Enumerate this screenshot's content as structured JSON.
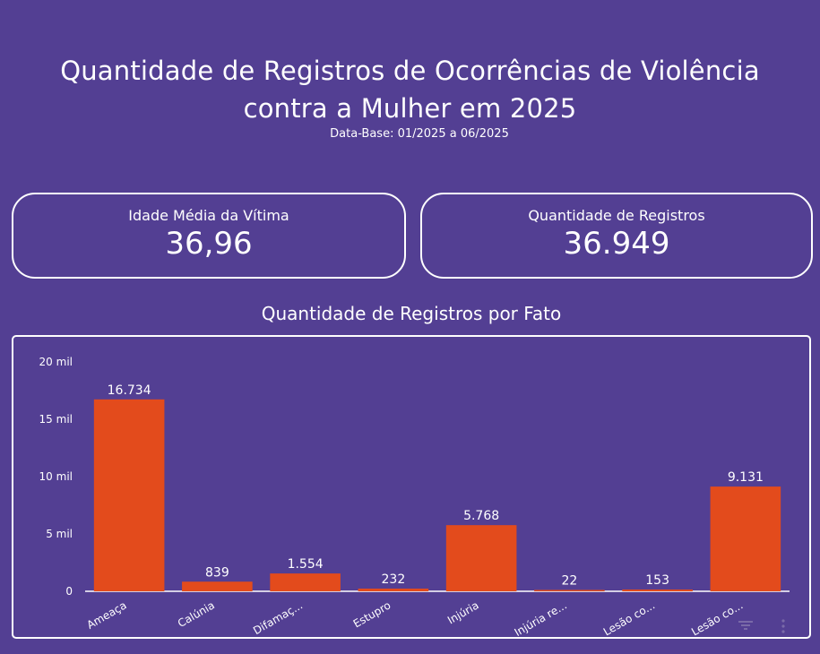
{
  "header": {
    "title_line1": "Quantidade de Registros de Ocorrências de Violência",
    "title_line2": "contra a Mulher em 2025",
    "subtitle": "Data-Base: 01/2025 a 06/2025"
  },
  "kpis": {
    "left": {
      "label": "Idade Média da Vítima",
      "value": "36,96"
    },
    "right": {
      "label": "Quantidade de Registros",
      "value": "36.949"
    }
  },
  "colors": {
    "background": "#533f93",
    "bar": "#e34b1c",
    "text": "#ffffff"
  },
  "icons": {
    "filter": "filter-icon",
    "more": "more-vert-icon"
  },
  "chart_data": {
    "type": "bar",
    "title": "Quantidade de Registros por Fato",
    "categories": [
      "Ameaça",
      "Calúnia",
      "Difamaç...",
      "Estupro",
      "Injúria",
      "Injúria re...",
      "Lesão co...",
      "Lesão co..."
    ],
    "values": [
      16734,
      839,
      1554,
      232,
      5768,
      22,
      153,
      9131
    ],
    "value_labels": [
      "16.734",
      "839",
      "1.554",
      "232",
      "5.768",
      "22",
      "153",
      "9.131"
    ],
    "ylim": [
      0,
      20000
    ],
    "yticks": [
      0,
      5000,
      10000,
      15000,
      20000
    ],
    "ytick_labels": [
      "0",
      "5 mil",
      "10 mil",
      "15 mil",
      "20 mil"
    ],
    "grid": false,
    "legend": "none"
  }
}
